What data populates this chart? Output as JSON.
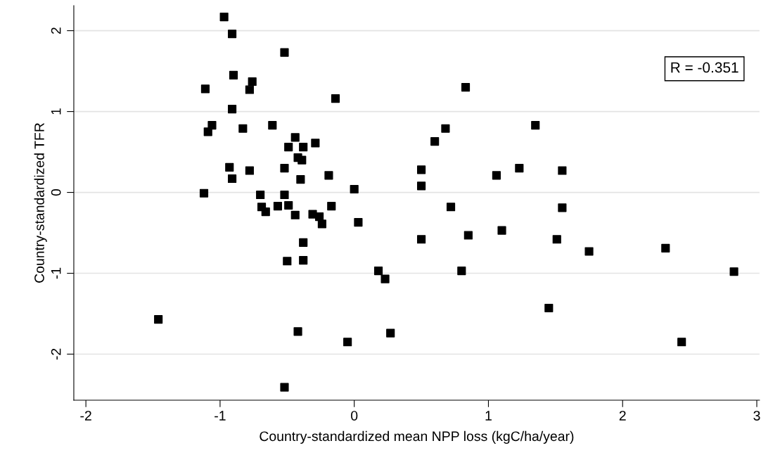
{
  "chart_data": {
    "type": "scatter",
    "xlabel": "Country-standardized mean NPP loss (kgC/ha/year)",
    "ylabel": "Country-standardized TFR",
    "annotations": [
      "R = -0.351"
    ],
    "x": [
      -0.97,
      -0.91,
      -0.52,
      -0.9,
      -0.76,
      -1.11,
      -0.78,
      -0.91,
      -1.06,
      -1.09,
      -0.83,
      -0.61,
      -0.44,
      -0.49,
      -0.38,
      -0.42,
      -0.39,
      -0.93,
      -0.78,
      -0.52,
      -0.91,
      -0.4,
      -1.12,
      -0.7,
      -0.52,
      -0.69,
      -0.66,
      -0.57,
      -0.49,
      -0.44,
      -0.31,
      -0.26,
      -0.24,
      -0.38,
      -0.5,
      -0.38,
      -1.46,
      -0.42,
      -0.52,
      -0.14,
      0.83,
      0.68,
      0.6,
      -0.29,
      -0.19,
      0.0,
      0.5,
      0.5,
      1.06,
      1.23,
      -0.17,
      0.72,
      1.35,
      1.55,
      1.55,
      0.03,
      0.18,
      0.23,
      0.5,
      0.85,
      0.8,
      1.1,
      -0.05,
      0.27,
      1.51,
      1.75,
      2.32,
      2.83,
      1.45,
      2.44
    ],
    "series": [
      {
        "color": "#000000",
        "values": [
          2.17,
          1.96,
          1.73,
          1.45,
          1.37,
          1.28,
          1.27,
          1.03,
          0.83,
          0.75,
          0.79,
          0.83,
          0.68,
          0.56,
          0.56,
          0.43,
          0.4,
          0.31,
          0.27,
          0.3,
          0.17,
          0.16,
          -0.01,
          -0.03,
          -0.03,
          -0.18,
          -0.24,
          -0.17,
          -0.16,
          -0.28,
          -0.27,
          -0.3,
          -0.39,
          -0.62,
          -0.85,
          -0.84,
          -1.57,
          -1.72,
          -2.41,
          1.16,
          1.3,
          0.79,
          0.63,
          0.61,
          0.21,
          0.04,
          0.28,
          0.08,
          0.21,
          0.3,
          -0.17,
          -0.18,
          0.83,
          0.27,
          -0.19,
          -0.37,
          -0.97,
          -1.07,
          -0.58,
          -0.53,
          -0.97,
          -0.47,
          -1.85,
          -1.74,
          -0.58,
          -0.73,
          -0.69,
          -0.98,
          -1.43,
          -1.85
        ]
      }
    ],
    "xlim": [
      -2.09,
      3.02
    ],
    "ylim": [
      -2.57,
      2.31
    ],
    "xticks": [
      -2,
      -1,
      0,
      1,
      2,
      3
    ],
    "yticks": [
      -2,
      -1,
      0,
      1,
      2
    ],
    "grid": "y",
    "marker": "square",
    "legend": false
  }
}
